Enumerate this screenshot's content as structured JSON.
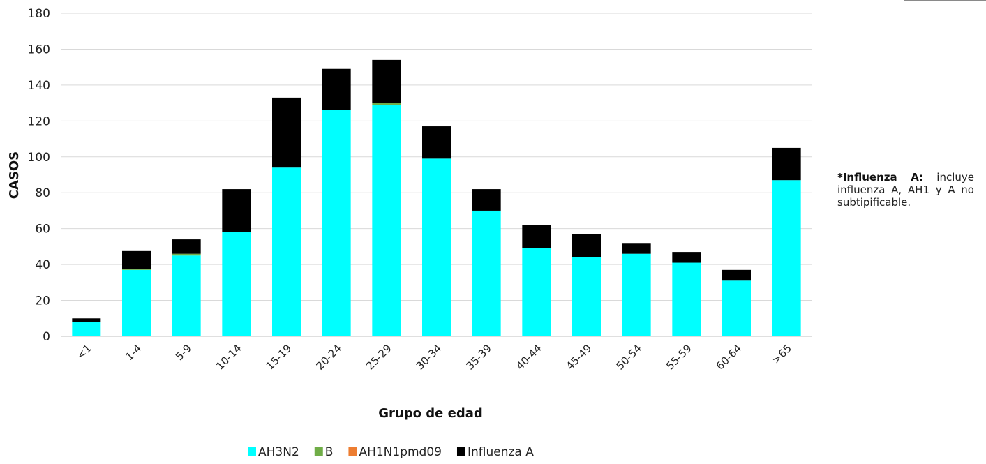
{
  "colors": {
    "AH3N2": "#00ffff",
    "B": "#70ad47",
    "AH1N1pmd09": "#ed7d31",
    "Influenza A": "#000000",
    "grid": "#d9d9d9",
    "axis": "#bfbfbf"
  },
  "note": {
    "bold": "*Influenza A:",
    "text": "incluye influenza A, AH1 y A no subtipificable."
  },
  "chart_data": {
    "type": "bar",
    "stacked": true,
    "title": "",
    "xlabel": "Grupo de edad",
    "ylabel": "CASOS",
    "ylim": [
      0,
      180
    ],
    "yticks": [
      0,
      20,
      40,
      60,
      80,
      100,
      120,
      140,
      160,
      180
    ],
    "grid": true,
    "legend_position": "bottom",
    "categories": [
      "<1",
      "1-4",
      "5-9",
      "10-14",
      "15-19",
      "20-24",
      "25-29",
      "30-34",
      "35-39",
      "40-44",
      "45-49",
      "50-54",
      "55-59",
      "60-64",
      ">65"
    ],
    "series": [
      {
        "name": "AH3N2",
        "values": [
          8,
          37,
          45,
          58,
          94,
          126,
          129,
          99,
          70,
          49,
          44,
          46,
          41,
          31,
          87
        ]
      },
      {
        "name": "B",
        "values": [
          0,
          0.5,
          1,
          0,
          0,
          0,
          1,
          0,
          0,
          0,
          0,
          0,
          0,
          0,
          0
        ]
      },
      {
        "name": "AH1N1pmd09",
        "values": [
          0,
          0,
          0,
          0,
          0,
          0,
          0,
          0,
          0,
          0,
          0,
          0,
          0,
          0,
          0
        ]
      },
      {
        "name": "Influenza A",
        "values": [
          2,
          10,
          8,
          24,
          39,
          23,
          24,
          18,
          12,
          13,
          13,
          6,
          6,
          6,
          18
        ]
      }
    ]
  }
}
